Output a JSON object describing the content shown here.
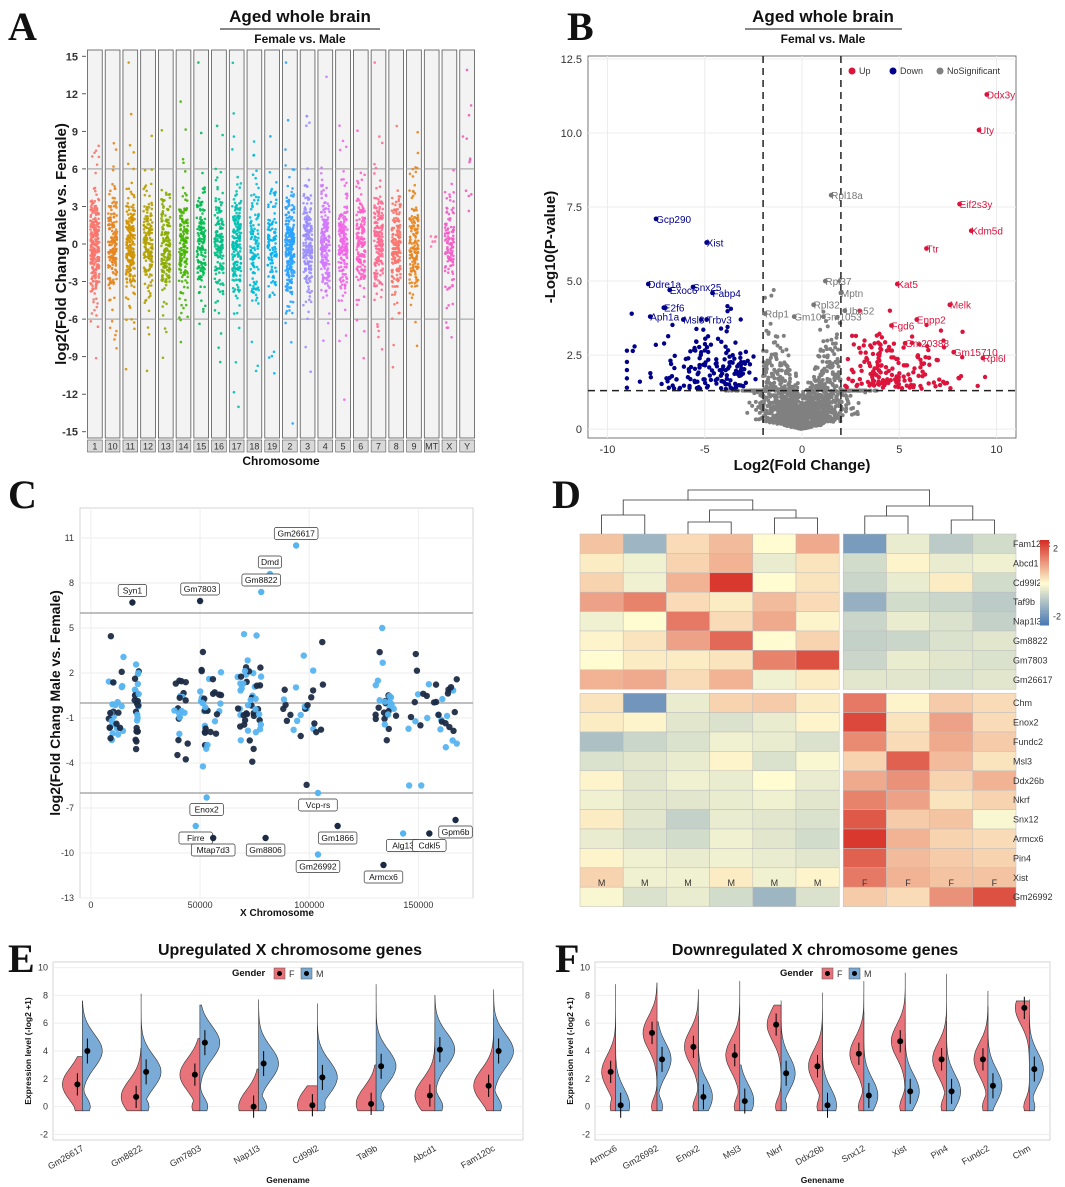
{
  "panels": {
    "A": {
      "letter": "A",
      "title": "Aged whole brain",
      "subtitle": "Female vs. Male"
    },
    "B": {
      "letter": "B",
      "title": "Aged whole brain",
      "subtitle": "Femal vs. Male"
    },
    "C": {
      "letter": "C"
    },
    "D": {
      "letter": "D"
    },
    "E": {
      "letter": "E"
    },
    "F": {
      "letter": "F"
    }
  },
  "colors": {
    "up": "#dc143c",
    "down": "#00008b",
    "nosig": "#808080",
    "light_blue": "#56b4f0",
    "dark_navy": "#1c2b45",
    "violin_f": "#e8737a",
    "violin_m": "#7aaad6"
  },
  "chart_data": [
    {
      "id": "A",
      "type": "scatter",
      "title": "Aged whole brain",
      "subtitle": "Female vs. Male",
      "xlabel": "Chromosome",
      "ylabel": "log2(Fold Chang Male vs. Female)",
      "ylim": [
        -15.5,
        15.5
      ],
      "yticks": [
        -15,
        -12,
        -9,
        -6,
        -3,
        0,
        3,
        6,
        9,
        12,
        15
      ],
      "threshold_lines": [
        6,
        -6
      ],
      "categories": [
        "1",
        "10",
        "11",
        "12",
        "13",
        "14",
        "15",
        "16",
        "17",
        "18",
        "19",
        "2",
        "3",
        "4",
        "5",
        "6",
        "7",
        "8",
        "9",
        "MT",
        "X",
        "Y"
      ],
      "category_colors": [
        "#f8766d",
        "#e7851e",
        "#d09400",
        "#b2a100",
        "#89ac00",
        "#45b500",
        "#00bc51",
        "#00c087",
        "#00c0b2",
        "#00bcd6",
        "#00b3f2",
        "#29a3ff",
        "#9c8dff",
        "#d277ff",
        "#f166e8",
        "#ff61c7",
        "#ff6c91",
        "#f8766d",
        "#e7851e",
        "#ff6fa8",
        "#f35ec7",
        "#e85fb8"
      ],
      "point_counts": [
        260,
        180,
        200,
        160,
        170,
        150,
        140,
        150,
        190,
        120,
        110,
        250,
        200,
        180,
        170,
        160,
        190,
        170,
        150,
        6,
        120,
        12
      ],
      "note": "jittered scatter of log2 fold change per gene, grouped by chromosome"
    },
    {
      "id": "B",
      "type": "scatter",
      "title": "Aged whole brain",
      "subtitle": "Femal vs. Male",
      "xlabel": "Log2(Fold Change)",
      "ylabel": "-Log10(P-value)",
      "xlim": [
        -11,
        11
      ],
      "ylim": [
        -0.3,
        12.6
      ],
      "xticks": [
        -10,
        -5,
        0,
        5,
        10
      ],
      "yticks": [
        0,
        2.5,
        5.0,
        7.5,
        10.0,
        12.5
      ],
      "vlines": [
        -2,
        2
      ],
      "hline": 1.3,
      "legend": [
        "Up",
        "Down",
        "NoSignificant"
      ],
      "labeled_points": [
        {
          "g": "Ddx3y",
          "x": 9.5,
          "y": 11.3,
          "c": "up"
        },
        {
          "g": "Uty",
          "x": 9.1,
          "y": 10.1,
          "c": "up"
        },
        {
          "g": "Eif2s3y",
          "x": 8.1,
          "y": 7.6,
          "c": "up"
        },
        {
          "g": "Kdm5d",
          "x": 8.7,
          "y": 6.7,
          "c": "up"
        },
        {
          "g": "Ttr",
          "x": 6.4,
          "y": 6.1,
          "c": "up"
        },
        {
          "g": "Kat5",
          "x": 4.9,
          "y": 4.9,
          "c": "up"
        },
        {
          "g": "Melk",
          "x": 7.6,
          "y": 4.2,
          "c": "up"
        },
        {
          "g": "Enpp2",
          "x": 5.9,
          "y": 3.7,
          "c": "up"
        },
        {
          "g": "Fgd6",
          "x": 4.6,
          "y": 3.5,
          "c": "up"
        },
        {
          "g": "Gm20388",
          "x": 5.3,
          "y": 2.9,
          "c": "up"
        },
        {
          "g": "Gm15710",
          "x": 7.8,
          "y": 2.6,
          "c": "up"
        },
        {
          "g": "Rpl6l",
          "x": 9.3,
          "y": 2.4,
          "c": "up"
        },
        {
          "g": "Gcp290",
          "x": -7.5,
          "y": 7.1,
          "c": "down"
        },
        {
          "g": "Xist",
          "x": -4.9,
          "y": 6.3,
          "c": "down"
        },
        {
          "g": "Ddre1a",
          "x": -7.9,
          "y": 4.9,
          "c": "down"
        },
        {
          "g": "Exoc6",
          "x": -6.8,
          "y": 4.7,
          "c": "down"
        },
        {
          "g": "Snx25",
          "x": -5.6,
          "y": 4.8,
          "c": "down"
        },
        {
          "g": "Fabp4",
          "x": -4.6,
          "y": 4.6,
          "c": "down"
        },
        {
          "g": "E2f6",
          "x": -7.1,
          "y": 4.1,
          "c": "down"
        },
        {
          "g": "Aph1a",
          "x": -7.8,
          "y": 3.8,
          "c": "down"
        },
        {
          "g": "Msl3",
          "x": -6.1,
          "y": 3.7,
          "c": "down"
        },
        {
          "g": "Trbv3",
          "x": -4.9,
          "y": 3.7,
          "c": "down"
        },
        {
          "g": "Rpl18a",
          "x": 1.5,
          "y": 7.9,
          "c": "nosig"
        },
        {
          "g": "Rpl37",
          "x": 1.2,
          "y": 5.0,
          "c": "nosig"
        },
        {
          "g": "Mptn",
          "x": 2.0,
          "y": 4.6,
          "c": "nosig"
        },
        {
          "g": "Rpl32",
          "x": 0.6,
          "y": 4.2,
          "c": "nosig"
        },
        {
          "g": "Rdp1",
          "x": -1.9,
          "y": 3.9,
          "c": "nosig"
        },
        {
          "g": "Uba52",
          "x": 2.2,
          "y": 4.0,
          "c": "nosig"
        },
        {
          "g": "Gm10",
          "x": -0.4,
          "y": 3.8,
          "c": "nosig"
        },
        {
          "g": "Gm1053",
          "x": 1.1,
          "y": 3.8,
          "c": "nosig"
        }
      ]
    },
    {
      "id": "C",
      "type": "scatter",
      "xlabel": "X Chromosome",
      "ylabel": "log2(Fold Chang Male vs. Female)",
      "xlim": [
        -5000,
        175000
      ],
      "ylim": [
        -13,
        13
      ],
      "xticks": [
        0,
        50000,
        100000,
        150000
      ],
      "yticks": [
        -13,
        -10,
        -7,
        -4,
        -1,
        2,
        5,
        8,
        11
      ],
      "hlines": [
        6,
        0,
        -6
      ],
      "labeled_points": [
        {
          "g": "Gm26617",
          "x": 94000,
          "y": 10.5
        },
        {
          "g": "Dmd",
          "x": 82000,
          "y": 8.6
        },
        {
          "g": "Gm8822",
          "x": 78000,
          "y": 7.4
        },
        {
          "g": "Gm7803",
          "x": 50000,
          "y": 6.8
        },
        {
          "g": "Syn1",
          "x": 19000,
          "y": 6.7
        },
        {
          "g": "Vcp-rs",
          "x": 104000,
          "y": -6.0
        },
        {
          "g": "Enox2",
          "x": 53000,
          "y": -6.3
        },
        {
          "g": "Firre",
          "x": 48000,
          "y": -8.2
        },
        {
          "g": "Mtap7d3",
          "x": 56000,
          "y": -9.0
        },
        {
          "g": "Gm8806",
          "x": 80000,
          "y": -9.0
        },
        {
          "g": "Gm1866",
          "x": 113000,
          "y": -8.2
        },
        {
          "g": "Alg13",
          "x": 143000,
          "y": -8.7
        },
        {
          "g": "Gpm6b",
          "x": 167000,
          "y": -7.8
        },
        {
          "g": "Cdkl5",
          "x": 155000,
          "y": -8.7
        },
        {
          "g": "Gm26992",
          "x": 104000,
          "y": -10.1
        },
        {
          "g": "Armcx6",
          "x": 134000,
          "y": -10.8
        }
      ]
    },
    {
      "id": "D",
      "type": "heatmap",
      "rows": [
        "Fam120c",
        "Abcd1",
        "Cd99l2",
        "Taf9b",
        "Nap1l3",
        "Gm8822",
        "Gm7803",
        "Gm26617",
        "Chm",
        "Enox2",
        "Fundc2",
        "Msl3",
        "Ddx26b",
        "Nkrf",
        "Snx12",
        "Armcx6",
        "Pin4",
        "Xist",
        "Gm26992"
      ],
      "columns": [
        "M",
        "M",
        "M",
        "M",
        "M",
        "M",
        "F",
        "F",
        "F",
        "F"
      ],
      "legend_range": [
        -2.5,
        2.5
      ],
      "legend_ticks": [
        2,
        1,
        0,
        -1,
        -2
      ],
      "values": [
        [
          0.7,
          -1.3,
          0.4,
          0.8,
          0.0,
          1.0,
          -1.8,
          -0.3,
          -0.9,
          -0.6
        ],
        [
          0.2,
          -0.2,
          0.5,
          0.9,
          -0.3,
          0.3,
          -0.6,
          0.1,
          -0.3,
          -0.2
        ],
        [
          0.5,
          -0.2,
          0.9,
          2.4,
          0.0,
          0.3,
          -0.7,
          -0.3,
          0.2,
          -0.6
        ],
        [
          1.1,
          1.5,
          0.4,
          0.2,
          0.8,
          0.4,
          -1.4,
          -0.6,
          -0.7,
          -0.9
        ],
        [
          -0.2,
          0.0,
          1.6,
          0.4,
          1.0,
          0.1,
          -0.7,
          -0.3,
          -0.5,
          -0.8
        ],
        [
          0.1,
          0.3,
          1.1,
          1.8,
          0.0,
          0.5,
          -0.8,
          -0.7,
          -0.5,
          -0.4
        ],
        [
          0.0,
          0.2,
          0.2,
          0.3,
          1.5,
          2.1,
          -0.7,
          -0.3,
          -0.4,
          -0.5
        ],
        [
          0.9,
          1.0,
          0.4,
          0.9,
          -0.2,
          0.2,
          -0.4,
          -0.4,
          -0.5,
          -0.4
        ],
        [
          0.3,
          -1.9,
          -0.3,
          0.5,
          0.6,
          0.2,
          1.6,
          0.1,
          0.6,
          0.4
        ],
        [
          0.2,
          0.1,
          -0.4,
          -0.5,
          -0.3,
          0.1,
          2.2,
          0.3,
          1.1,
          0.4
        ],
        [
          -1.1,
          -0.7,
          -0.5,
          -0.2,
          -0.3,
          -0.5,
          1.4,
          0.4,
          1.0,
          0.6
        ],
        [
          -0.5,
          -0.4,
          -0.3,
          0.1,
          -0.5,
          -0.1,
          0.5,
          1.9,
          0.8,
          0.3
        ],
        [
          0.1,
          -0.4,
          -0.2,
          -0.3,
          0.0,
          -0.3,
          1.0,
          1.3,
          0.5,
          0.9
        ],
        [
          -0.2,
          -0.4,
          -0.4,
          -0.3,
          -0.2,
          -0.4,
          1.5,
          1.1,
          0.3,
          0.5
        ],
        [
          0.2,
          -0.4,
          -0.8,
          -0.3,
          -0.4,
          -0.5,
          2.0,
          0.6,
          0.7,
          -0.1
        ],
        [
          -0.3,
          -0.5,
          -0.6,
          -0.2,
          -0.4,
          -0.6,
          2.4,
          0.9,
          0.5,
          0.4
        ],
        [
          0.1,
          -0.2,
          -0.3,
          -0.2,
          -0.3,
          -0.4,
          1.9,
          0.8,
          0.6,
          0.5
        ],
        [
          0.5,
          -0.2,
          -0.2,
          0.2,
          -0.2,
          0.1,
          1.6,
          0.9,
          0.7,
          0.7
        ],
        [
          -0.1,
          -0.5,
          -0.3,
          -0.6,
          -1.3,
          -0.5,
          0.6,
          0.4,
          1.3,
          2.1
        ]
      ]
    },
    {
      "id": "E",
      "type": "violin",
      "title": "Upregulated X chromosome genes",
      "xlabel": "Genename",
      "ylabel": "Expression level (-log2 +1)",
      "legend_title": "Gender",
      "legend": [
        "F",
        "M"
      ],
      "ylim": [
        -2.4,
        10.4
      ],
      "yticks": [
        -2,
        0,
        2,
        4,
        6,
        8,
        10
      ],
      "categories": [
        "Gm26617",
        "Gm8822",
        "Gm7803",
        "Nap1l3",
        "Cd99l2",
        "Taf9b",
        "Abcd1",
        "Fam120c"
      ],
      "F_mean": [
        1.6,
        0.7,
        2.3,
        0.0,
        0.1,
        0.2,
        0.8,
        1.5
      ],
      "M_mean": [
        4.0,
        2.5,
        4.6,
        3.1,
        2.1,
        2.9,
        4.1,
        4.0
      ],
      "F_max": [
        3.6,
        4.2,
        4.9,
        2.7,
        1.5,
        3.0,
        6.0,
        6.4
      ],
      "M_max": [
        7.6,
        8.1,
        7.3,
        7.7,
        7.4,
        8.8,
        8.0,
        8.4
      ]
    },
    {
      "id": "F",
      "type": "violin",
      "title": "Downregulated X chromosome genes",
      "xlabel": "Genename",
      "ylabel": "Expression level (-log2 +1)",
      "legend_title": "Gender",
      "legend": [
        "F",
        "M"
      ],
      "ylim": [
        -2.4,
        10.4
      ],
      "yticks": [
        -2,
        0,
        2,
        4,
        6,
        8,
        10
      ],
      "categories": [
        "Armcx6",
        "Gm26992",
        "Enox2",
        "Msl3",
        "Nkrf",
        "Ddx26b",
        "Snx12",
        "Xist",
        "Pin4",
        "Fundc2",
        "Chm"
      ],
      "F_mean": [
        2.5,
        5.3,
        4.3,
        3.7,
        5.9,
        2.9,
        3.8,
        4.7,
        3.4,
        3.4,
        7.1
      ],
      "M_mean": [
        0.1,
        3.4,
        0.7,
        0.4,
        2.4,
        0.1,
        0.8,
        1.1,
        1.1,
        1.5,
        2.7
      ],
      "F_max": [
        8.8,
        8.9,
        8.4,
        9.0,
        7.3,
        8.2,
        9.0,
        9.6,
        9.5,
        8.3,
        7.6
      ],
      "M_max": [
        6.4,
        6.1,
        6.5,
        3.0,
        7.6,
        5.9,
        6.8,
        6.3,
        6.1,
        7.2,
        7.7
      ]
    }
  ]
}
